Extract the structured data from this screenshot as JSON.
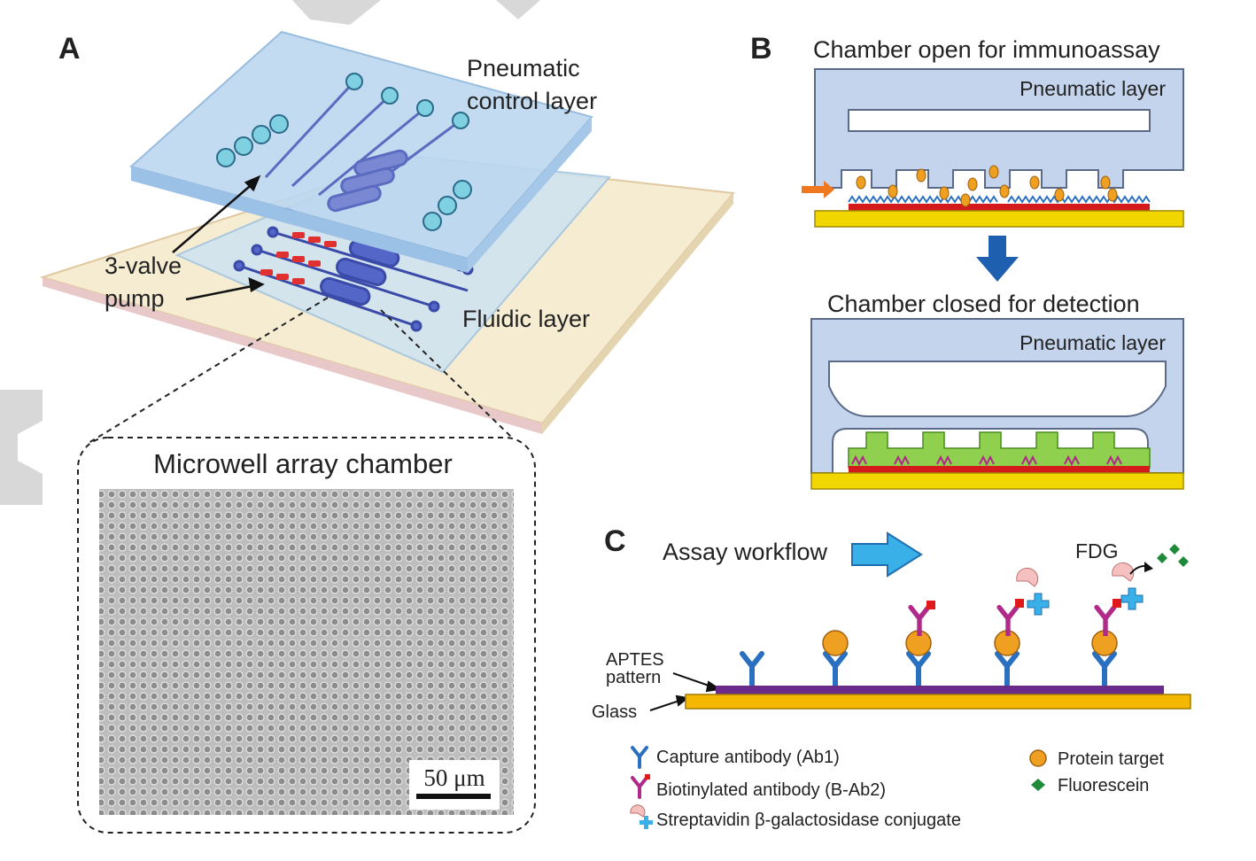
{
  "colors": {
    "glass": "#f5e9c8",
    "pneumatic": "#a9cbea",
    "fluidic_channel": "#3a4aa8",
    "valve_red": "#e03030",
    "gold_layer": "#f2d600",
    "red_layer": "#d41a1a",
    "green_fill": "#8fd14f",
    "target_orange": "#f0a020",
    "capture_ab_blue": "#2a70c0",
    "biotin_ab_magenta": "#b02a8a",
    "fluorescein_green": "#1e8a3a",
    "aptes_purple": "#6a2a8a",
    "glass_c": "#f5b800",
    "arrow_blue": "#1f5fb0",
    "arrow_orange": "#f07820"
  },
  "panel_a": {
    "label": "A",
    "pneumatic_label_1": "Pneumatic",
    "pneumatic_label_2": "control layer",
    "pump_label_1": "3-valve",
    "pump_label_2": "pump",
    "fluidic_label": "Fluidic layer",
    "chamber_title": "Microwell array chamber",
    "scale_bar": "50 μm"
  },
  "panel_b": {
    "label": "B",
    "open_title": "Chamber open for immunoassay",
    "closed_title": "Chamber closed for detection",
    "layer_label_top": "Pneumatic layer",
    "layer_label_bottom": "Pneumatic layer"
  },
  "panel_c": {
    "label": "C",
    "workflow_title": "Assay workflow",
    "fdg_label": "FDG",
    "aptes_label_1": "APTES",
    "aptes_label_2": "pattern",
    "glass_label": "Glass",
    "legend": {
      "capture": "Capture antibody (Ab1)",
      "biotin": "Biotinylated antibody (B-Ab2)",
      "strept": "Streptavidin β-galactosidase conjugate",
      "protein": "Protein target",
      "fluor": "Fluorescein"
    }
  }
}
